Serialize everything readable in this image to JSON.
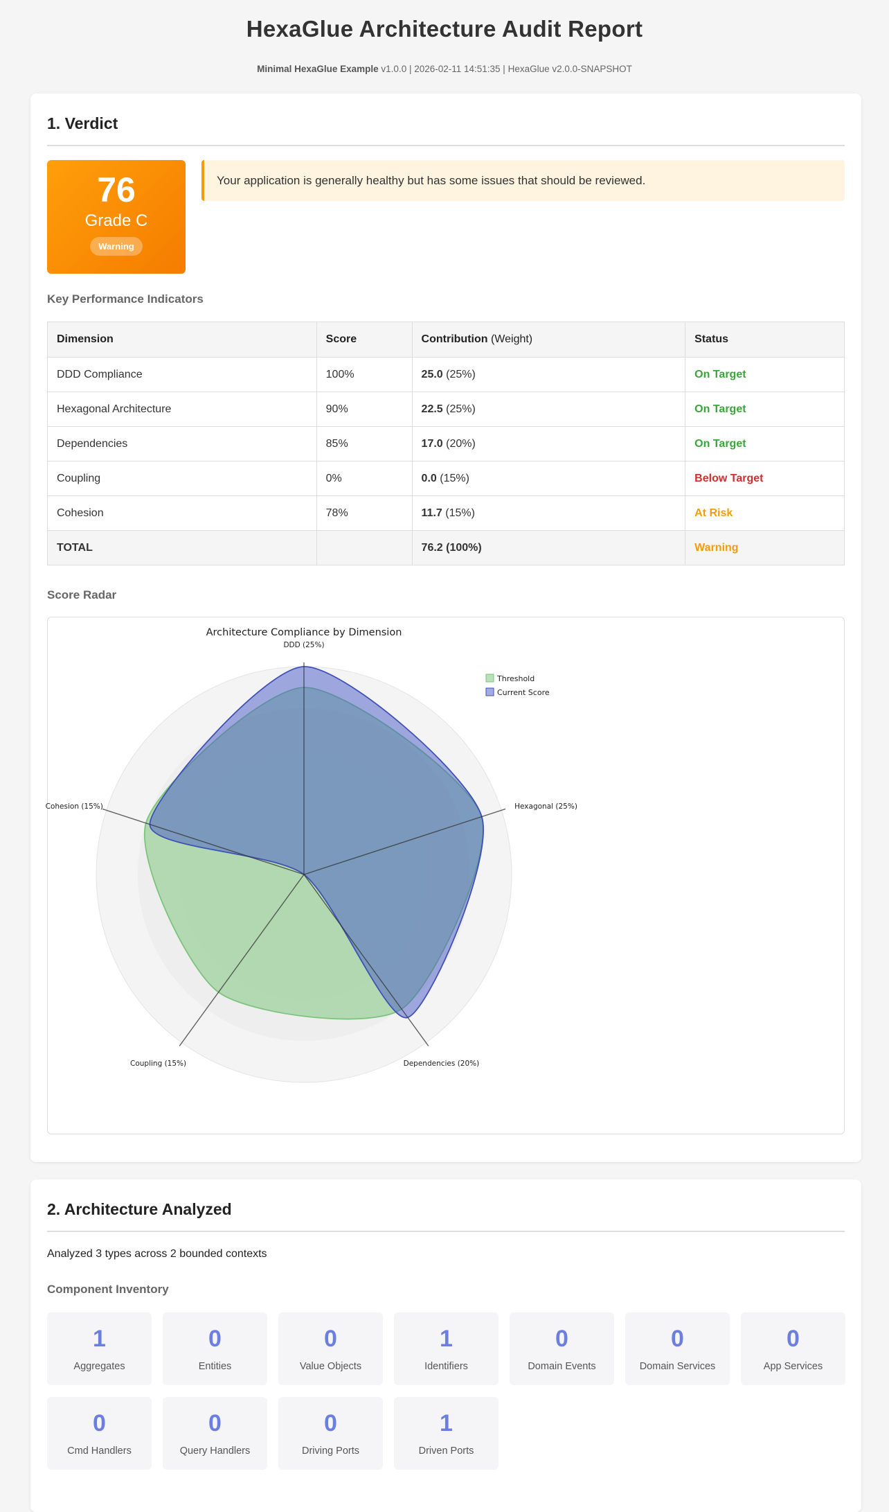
{
  "header": {
    "title": "HexaGlue Architecture Audit Report",
    "project": "Minimal HexaGlue Example",
    "meta": " v1.0.0 | 2026-02-11 14:51:35 | HexaGlue v2.0.0-SNAPSHOT"
  },
  "verdict": {
    "heading": "1. Verdict",
    "score": "76",
    "grade": "Grade C",
    "badge": "Warning",
    "message": "Your application is generally healthy but has some issues that should be reviewed.",
    "colors": {
      "grade_bg": "#f57c00",
      "message_bg": "#fff4e0"
    }
  },
  "kpi": {
    "heading": "Key Performance Indicators",
    "columns": {
      "dimension": "Dimension",
      "score": "Score",
      "contribution": "Contribution",
      "weight": "(Weight)",
      "status": "Status"
    },
    "rows": [
      {
        "dimension": "DDD Compliance",
        "score": "100%",
        "contribution": "25.0",
        "weight": " (25%)",
        "status": "On Target",
        "status_type": "ok"
      },
      {
        "dimension": "Hexagonal Architecture",
        "score": "90%",
        "contribution": "22.5",
        "weight": " (25%)",
        "status": "On Target",
        "status_type": "ok"
      },
      {
        "dimension": "Dependencies",
        "score": "85%",
        "contribution": "17.0",
        "weight": " (20%)",
        "status": "On Target",
        "status_type": "ok"
      },
      {
        "dimension": "Coupling",
        "score": "0%",
        "contribution": "0.0",
        "weight": " (15%)",
        "status": "Below Target",
        "status_type": "bad"
      },
      {
        "dimension": "Cohesion",
        "score": "78%",
        "contribution": "11.7",
        "weight": " (15%)",
        "status": "At Risk",
        "status_type": "risk"
      }
    ],
    "total": {
      "label": "TOTAL",
      "contribution": "76.2 (100%)",
      "status": "Warning"
    }
  },
  "radar": {
    "heading": "Score Radar"
  },
  "chart_data": {
    "type": "radar",
    "title": "Architecture Compliance by Dimension",
    "categories": [
      "DDD (25%)",
      "Hexagonal (25%)",
      "Dependencies (20%)",
      "Coupling (15%)",
      "Cohesion (15%)"
    ],
    "range": [
      0,
      100
    ],
    "legend": "top-right",
    "series": [
      {
        "name": "Threshold",
        "values": [
          90,
          90,
          80,
          70,
          80
        ],
        "color": "#7cc47c"
      },
      {
        "name": "Current Score",
        "values": [
          100,
          90,
          85,
          0,
          78
        ],
        "color": "#3f51b5"
      }
    ]
  },
  "architecture": {
    "heading": "2. Architecture Analyzed",
    "summary": "Analyzed 3 types across 2 bounded contexts",
    "inventory_heading": "Component Inventory",
    "components": [
      {
        "value": "1",
        "label": "Aggregates"
      },
      {
        "value": "0",
        "label": "Entities"
      },
      {
        "value": "0",
        "label": "Value Objects"
      },
      {
        "value": "1",
        "label": "Identifiers"
      },
      {
        "value": "0",
        "label": "Domain Events"
      },
      {
        "value": "0",
        "label": "Domain Services"
      },
      {
        "value": "0",
        "label": "App Services"
      },
      {
        "value": "0",
        "label": "Cmd Handlers"
      },
      {
        "value": "0",
        "label": "Query Handlers"
      },
      {
        "value": "0",
        "label": "Driving Ports"
      },
      {
        "value": "1",
        "label": "Driven Ports"
      }
    ]
  }
}
